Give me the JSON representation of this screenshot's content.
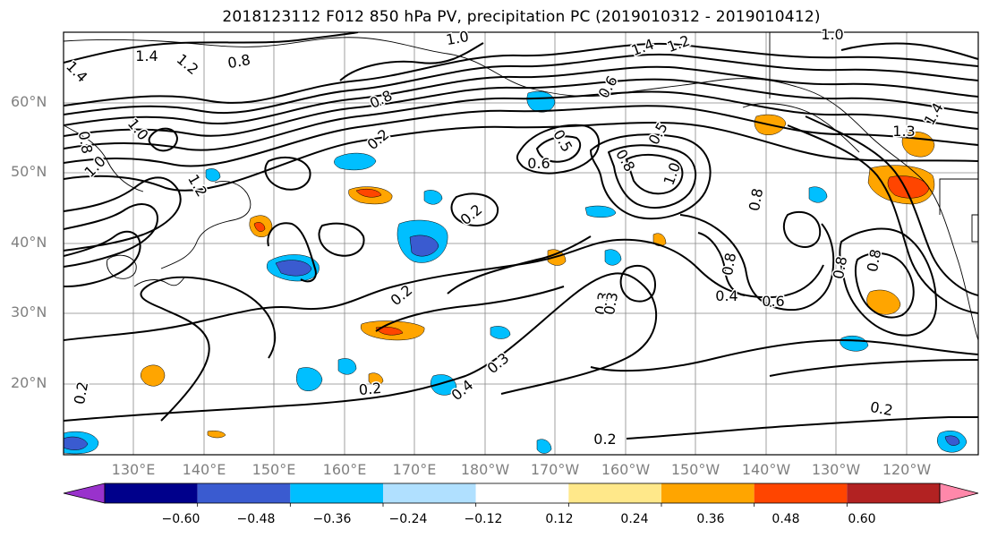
{
  "title": "2018123112 F012 850 hPa PV, precipitation PC (2019010312 - 2019010412)",
  "lat_labels": [
    "60°N",
    "50°N",
    "40°N",
    "30°N",
    "20°N"
  ],
  "lon_labels": [
    "130°E",
    "140°E",
    "150°E",
    "160°E",
    "170°E",
    "180°W",
    "170°W",
    "160°W",
    "150°W",
    "140°W",
    "130°W",
    "120°W"
  ],
  "colorbar": {
    "tick_labels": [
      "−0.60",
      "−0.48",
      "−0.36",
      "−0.24",
      "−0.12",
      "0.12",
      "0.24",
      "0.36",
      "0.48",
      "0.60"
    ],
    "colors": [
      "#9932cc",
      "#00008b",
      "#3a5bd0",
      "#00bfff",
      "#b0e0ff",
      "#ffffff",
      "#ffe88a",
      "#ffa500",
      "#ff4500",
      "#b22222",
      "#ff88aa"
    ]
  },
  "contour_labels": [
    "1.0",
    "1.4",
    "0.8",
    "1.4",
    "1.2",
    "0.8",
    "0.8",
    "0.6",
    "0.5",
    "0.6",
    "1.0",
    "0.2",
    "0.2",
    "0.2",
    "0.2",
    "0.3",
    "0.4",
    "0.3",
    "0.2",
    "0.2",
    "0.8",
    "0.4",
    "0.6",
    "0.8",
    "0.8",
    "0.5",
    "1.0",
    "0.8",
    "1.3",
    "1.4",
    "1.2",
    "1.0",
    "1.0",
    "0.8",
    "0.3",
    "0.2",
    "1.4",
    "1.2"
  ]
}
